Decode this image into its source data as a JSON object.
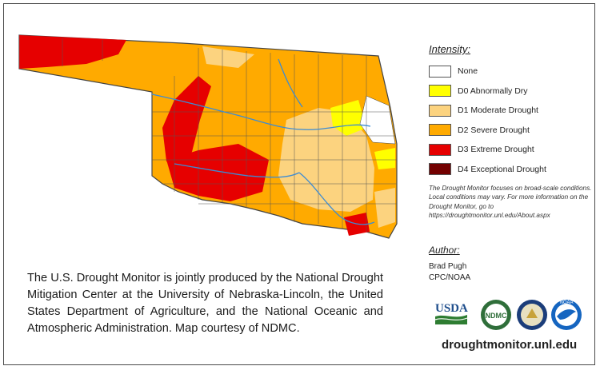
{
  "legend": {
    "title": "Intensity:",
    "items": [
      {
        "label": "None",
        "color": "#ffffff"
      },
      {
        "label": "D0 Abnormally Dry",
        "color": "#ffff00"
      },
      {
        "label": "D1 Moderate Drought",
        "color": "#fcd37f"
      },
      {
        "label": "D2 Severe Drought",
        "color": "#ffaa00"
      },
      {
        "label": "D3 Extreme Drought",
        "color": "#e60000"
      },
      {
        "label": "D4 Exceptional Drought",
        "color": "#730000"
      }
    ]
  },
  "disclaimer": "The Drought Monitor focuses on broad-scale conditions. Local conditions may vary. For more information on the Drought Monitor, go to https://droughtmonitor.unl.edu/About.aspx",
  "author": {
    "title": "Author:",
    "name": "Brad Pugh",
    "org": "CPC/NOAA"
  },
  "credit": "The U.S. Drought Monitor is jointly produced by the National Drought Mitigation Center at the University of Nebraska-Lincoln, the United States Department of Agriculture, and the National Oceanic and Atmospheric Administration. Map courtesy of NDMC.",
  "logos": {
    "usda": "USDA",
    "ndmc": "NDMC",
    "noaa": "NOAA"
  },
  "website": "droughtmonitor.unl.edu"
}
